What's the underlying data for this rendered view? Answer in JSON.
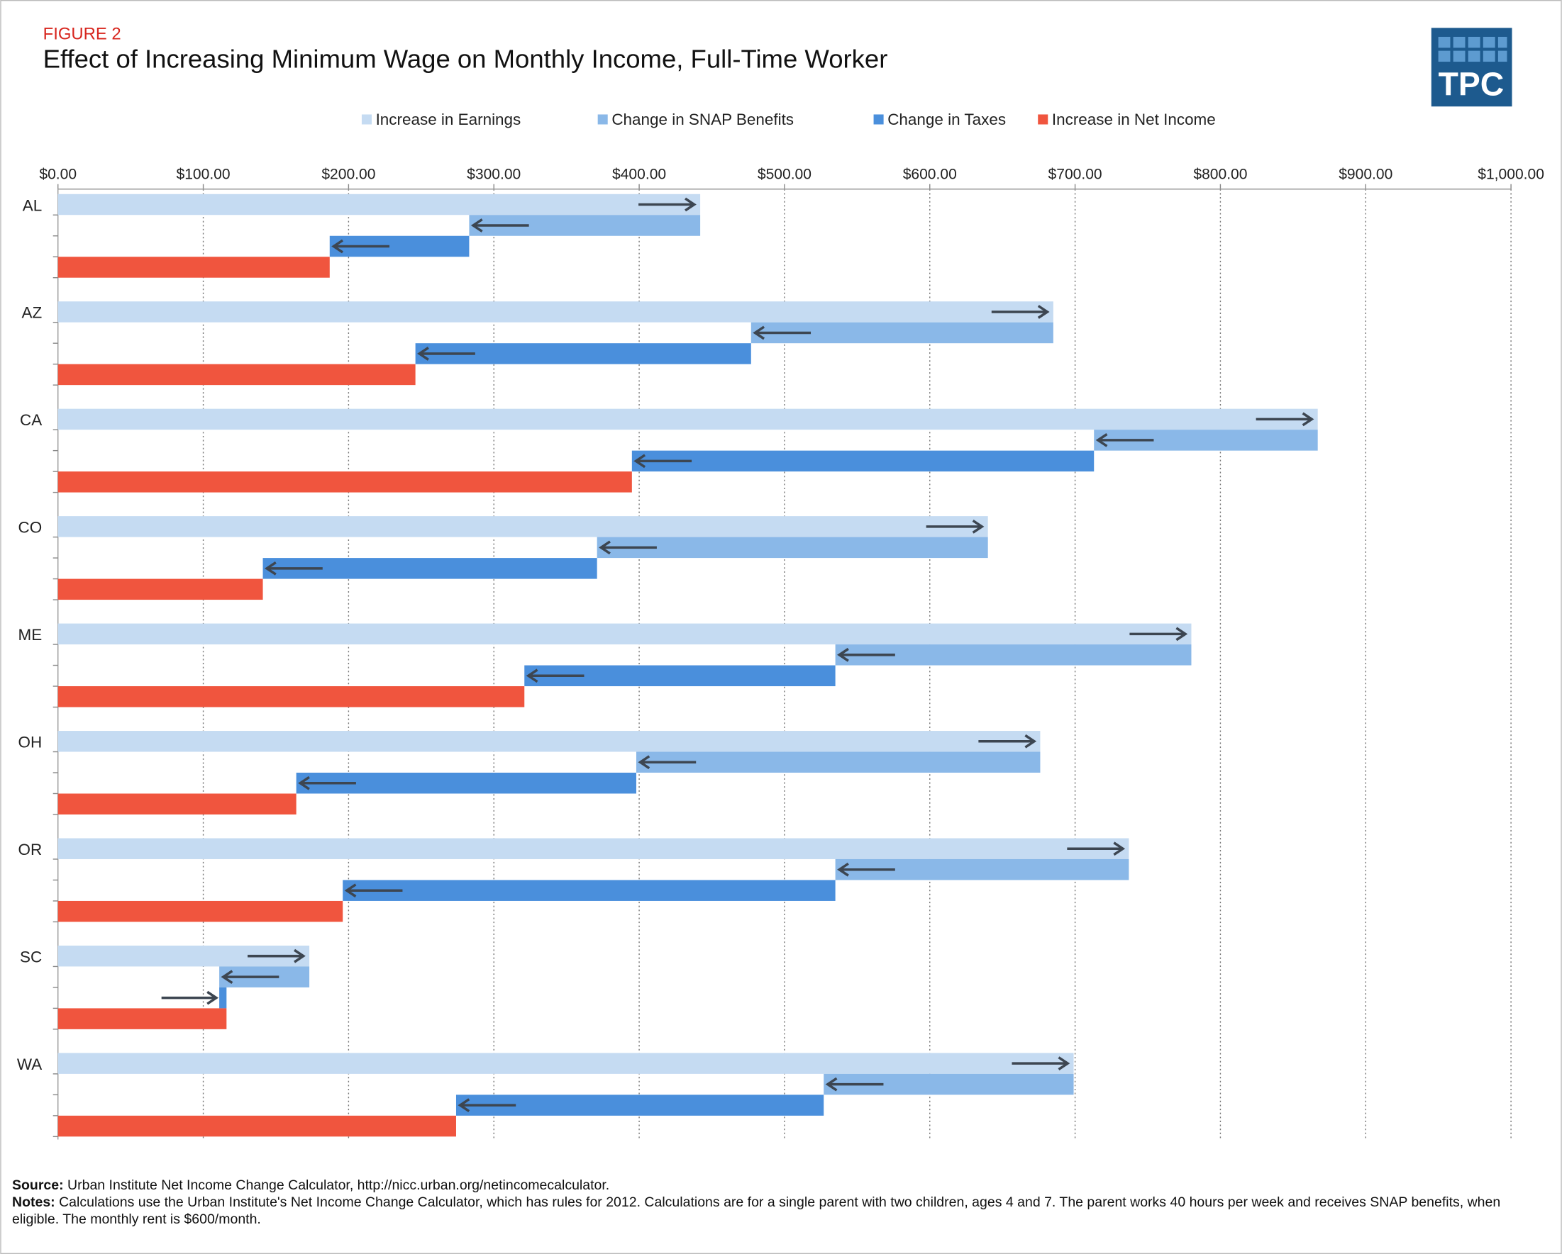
{
  "chart_data": {
    "type": "waterfall",
    "figure_label": "FIGURE 2",
    "title": "Effect of Increasing Minimum Wage on Monthly Income, Full-Time Worker",
    "logo": "TPC",
    "orientation": "horizontal",
    "categories": [
      "AL",
      "AZ",
      "CA",
      "CO",
      "ME",
      "OH",
      "OR",
      "SC",
      "WA"
    ],
    "series": [
      {
        "name": "Increase in Earnings",
        "color": "#c5dbf2",
        "values": [
          442,
          685,
          867,
          640,
          780,
          676,
          737,
          173,
          699
        ]
      },
      {
        "name": "Change in SNAP Benefits",
        "color": "#8ab8e8",
        "values": [
          -159,
          -208,
          -154,
          -269,
          -245,
          -278,
          -202,
          -62,
          -172
        ]
      },
      {
        "name": "Change in Taxes",
        "color": "#4a8fdc",
        "values": [
          -96,
          -231,
          -318,
          -230,
          -214,
          -234,
          -339,
          5,
          -253
        ]
      },
      {
        "name": "Increase in Net Income",
        "color": "#f0553e",
        "values": [
          187,
          246,
          395,
          141,
          321,
          164,
          196,
          116,
          274
        ]
      }
    ],
    "xlim": [
      0,
      1000
    ],
    "xticks": [
      {
        "value": 0,
        "label": "$0.00"
      },
      {
        "value": 100,
        "label": "$100.00"
      },
      {
        "value": 200,
        "label": "$200.00"
      },
      {
        "value": 300,
        "label": "$300.00"
      },
      {
        "value": 400,
        "label": "$400.00"
      },
      {
        "value": 500,
        "label": "$500.00"
      },
      {
        "value": 600,
        "label": "$600.00"
      },
      {
        "value": 700,
        "label": "$700.00"
      },
      {
        "value": 800,
        "label": "$800.00"
      },
      {
        "value": 900,
        "label": "$900.00"
      },
      {
        "value": 1000,
        "label": "$1,000.00"
      }
    ],
    "grid": true,
    "source_label": "Source:",
    "source_text": "Urban Institute Net Income Change Calculator, http://nicc.urban.org/netincomecalculator.",
    "notes_label": "Notes:",
    "notes_text": "Calculations use the Urban Institute's Net Income Change Calculator, which has rules for 2012. Calculations are for a single parent with two children, ages 4 and 7. The parent works 40 hours per week and receives SNAP benefits, when eligible. The monthly rent is $600/month."
  }
}
